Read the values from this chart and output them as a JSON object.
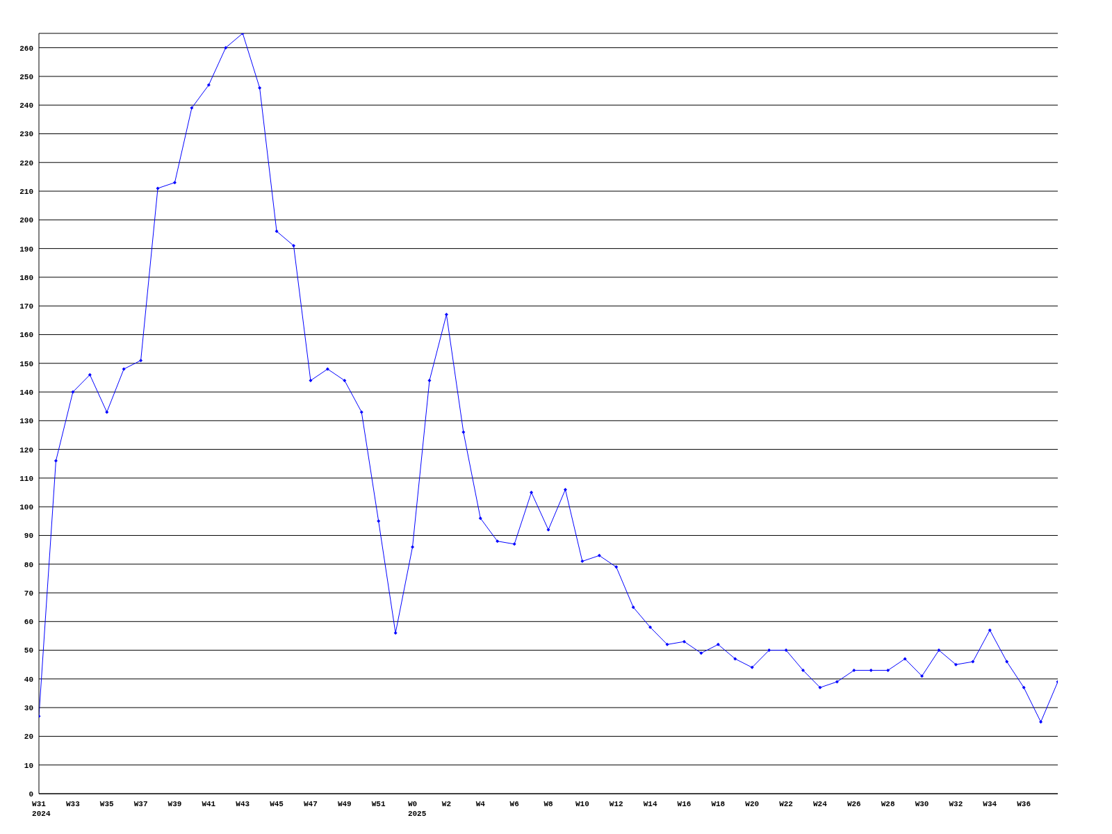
{
  "chart_data": {
    "type": "line",
    "categories": [
      "W31\n2024",
      null,
      "W33",
      null,
      "W35",
      null,
      "W37",
      null,
      "W39",
      null,
      "W41",
      null,
      "W43",
      null,
      "W45",
      null,
      "W47",
      null,
      "W49",
      null,
      "W51",
      null,
      "W0\n2025",
      null,
      "W2",
      null,
      "W4",
      null,
      "W6",
      null,
      "W8",
      null,
      "W10",
      null,
      "W12",
      null,
      "W14",
      null,
      "W16",
      null,
      "W18",
      null,
      "W20",
      null,
      "W22",
      null,
      "W24",
      null,
      "W26",
      null,
      "W28",
      null,
      "W30",
      null,
      "W32",
      null,
      "W34",
      null,
      "W36",
      null,
      null
    ],
    "series": [
      {
        "color": "#0000ff",
        "values": [
          27,
          116,
          140,
          146,
          133,
          148,
          151,
          211,
          213,
          239,
          247,
          260,
          265,
          246,
          196,
          191,
          144,
          148,
          144,
          133,
          95,
          56,
          86,
          144,
          167,
          126,
          96,
          88,
          87,
          105,
          92,
          106,
          81,
          83,
          79,
          65,
          58,
          52,
          53,
          49,
          52,
          47,
          44,
          50,
          50,
          43,
          37,
          39,
          43,
          43,
          43,
          47,
          41,
          50,
          45,
          46,
          57,
          46,
          37,
          25,
          39
        ]
      }
    ],
    "ylim": [
      0,
      265
    ],
    "yticks": [
      0,
      10,
      20,
      30,
      40,
      50,
      60,
      70,
      80,
      90,
      100,
      110,
      120,
      130,
      140,
      150,
      160,
      170,
      180,
      190,
      200,
      210,
      220,
      230,
      240,
      250,
      260
    ],
    "grid": "y",
    "marker": "diamond",
    "line_style": "solid"
  }
}
